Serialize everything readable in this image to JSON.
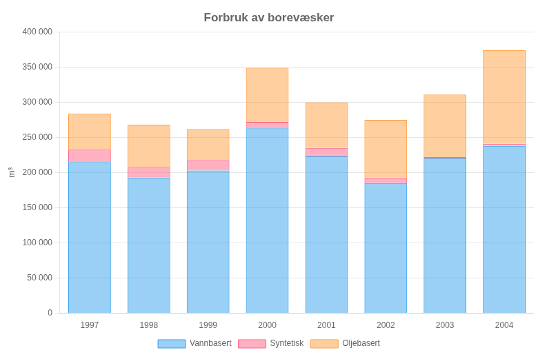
{
  "chart_data": {
    "type": "bar",
    "title": "Forbruk av borevæsker",
    "ylabel": "m³",
    "categories": [
      "1997",
      "1998",
      "1999",
      "2000",
      "2001",
      "2002",
      "2003",
      "2004"
    ],
    "series": [
      {
        "name": "Vannbasert",
        "values": [
          215000,
          193000,
          203000,
          263000,
          223000,
          185000,
          220000,
          238000
        ]
      },
      {
        "name": "Syntetisk",
        "values": [
          18000,
          15000,
          15000,
          9000,
          12000,
          8000,
          2000,
          3000
        ]
      },
      {
        "name": "Oljebasert",
        "values": [
          51000,
          60000,
          44000,
          77000,
          65000,
          82000,
          89000,
          133000
        ]
      }
    ],
    "stacked": true,
    "ylim": [
      0,
      400000
    ],
    "yticks": [
      0,
      {
        "value": 50000,
        "label": "50 000"
      },
      {
        "value": 100000,
        "label": "100 000"
      },
      {
        "value": 150000,
        "label": "150 000"
      },
      {
        "value": 200000,
        "label": "200 000"
      },
      {
        "value": 250000,
        "label": "250 000"
      },
      {
        "value": 300000,
        "label": "300 000"
      },
      {
        "value": 350000,
        "label": "350 000"
      },
      {
        "value": 400000,
        "label": "400 000"
      }
    ],
    "grid": true,
    "legend": "bottom"
  }
}
